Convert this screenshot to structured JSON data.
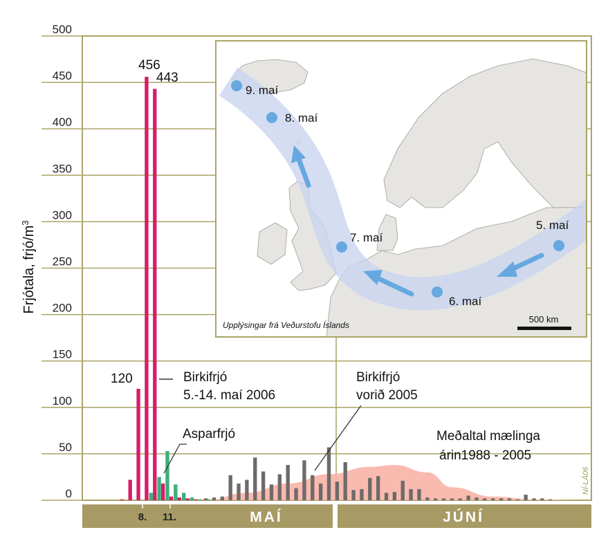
{
  "colors": {
    "frame": "#a9a466",
    "grid": "#a9a466",
    "band": "#a79a64",
    "birch_2006": "#d61d6a",
    "aspen_2006": "#3daf78",
    "birch_2005": "#6f6a6a",
    "average_area": "#f8b3a6",
    "map_land": "#e6e5e2",
    "map_sea": "#ffffff",
    "trajectory": "#c9d5ef",
    "arrow": "#66a8df"
  },
  "chart_data": {
    "type": "bar",
    "ylabel": "Frjótala, frjó/m3",
    "ylim": [
      0,
      500
    ],
    "yticks": [
      0,
      50,
      100,
      150,
      200,
      250,
      300,
      350,
      400,
      450,
      500
    ],
    "x_day_labels": [
      "8.",
      "11."
    ],
    "months": [
      "MAÍ",
      "JÚNÍ"
    ],
    "series": [
      {
        "name": "Birkifrjó 5.-14. maí 2006",
        "day": [
          5,
          6,
          7,
          8,
          9,
          10,
          11,
          12,
          13,
          14
        ],
        "values": [
          1,
          22,
          120,
          456,
          443,
          18,
          4,
          3,
          2,
          1
        ]
      },
      {
        "name": "Asparfrjó",
        "day": [
          8,
          9,
          10,
          11,
          12,
          13,
          14,
          15
        ],
        "values": [
          8,
          25,
          53,
          17,
          8,
          3,
          1,
          1
        ]
      },
      {
        "name": "Birkifrjó vorið 2005",
        "day": [
          15,
          16,
          17,
          18,
          19,
          20,
          21,
          22,
          23,
          24,
          25,
          26,
          27,
          28,
          29,
          30,
          31,
          32,
          33,
          34,
          35,
          36,
          37,
          38,
          39,
          40,
          41,
          42,
          43,
          44,
          45,
          46,
          47,
          48,
          49,
          50,
          51,
          52,
          53,
          54,
          55,
          56,
          57
        ],
        "values": [
          2,
          3,
          4,
          27,
          18,
          22,
          46,
          31,
          17,
          28,
          38,
          13,
          43,
          27,
          18,
          57,
          20,
          41,
          11,
          12,
          24,
          26,
          8,
          9,
          21,
          12,
          12,
          3,
          2,
          2,
          2,
          2,
          5,
          3,
          2,
          2,
          2,
          2,
          1,
          6,
          2,
          2,
          1
        ]
      },
      {
        "name": "Meðaltal mælinga árin1988 - 2005",
        "day": [
          15,
          20,
          25,
          30,
          35,
          38,
          42,
          45,
          50,
          55,
          60
        ],
        "values": [
          0,
          8,
          18,
          28,
          36,
          38,
          30,
          14,
          4,
          1,
          0
        ]
      }
    ],
    "annotations": [
      {
        "text": "456",
        "target": "Birkifrjó 5.-14. maí 2006 day 8"
      },
      {
        "text": "443",
        "target": "Birkifrjó 5.-14. maí 2006 day 9"
      },
      {
        "text": "120",
        "target": "Birkifrjó 5.-14. maí 2006 day 7"
      }
    ]
  },
  "labels": {
    "y_axis_main": "Frjótala, frjó/m",
    "y_axis_sup": "3",
    "val_456": "456",
    "val_443": "443",
    "val_120": "120",
    "birch2006_line1": "Birkifrjó",
    "birch2006_line2": "5.-14. maí 2006",
    "aspen": "Asparfrjó",
    "birch2005_line1": "Birkifrjó",
    "birch2005_line2": "vorið 2005",
    "avg_line1": "Meðaltal mælinga",
    "avg_line2": "árin1988 - 2005",
    "signature": "NÍ-LÁ06",
    "month_may": "MAÍ",
    "month_june": "JÚNÍ",
    "day_8": "8.",
    "day_11": "11."
  },
  "map": {
    "points": [
      "9. maí",
      "8. maí",
      "7. maí",
      "6. maí",
      "5. maí"
    ],
    "source": "Upplýsingar frá Veðurstofu Íslands",
    "scale": "500 km"
  }
}
